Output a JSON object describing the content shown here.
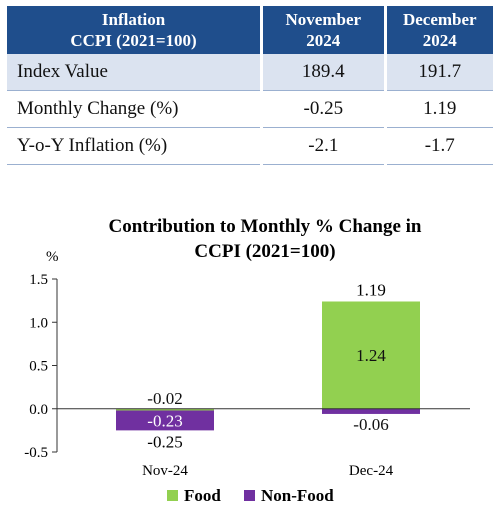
{
  "table": {
    "header": {
      "col1_line1": "Inflation",
      "col1_line2": "CCPI (2021=100)",
      "col2_line1": "November",
      "col2_line2": "2024",
      "col3_line1": "December",
      "col3_line2": "2024"
    },
    "rows": [
      {
        "label": "Index Value",
        "nov": "189.4",
        "dec": "191.7"
      },
      {
        "label": "Monthly Change (%)",
        "nov": "-0.25",
        "dec": "1.19"
      },
      {
        "label": "Y-o-Y Inflation (%)",
        "nov": "-2.1",
        "dec": "-1.7"
      }
    ],
    "header_color": "#1f4e8c"
  },
  "chart_data": {
    "type": "bar",
    "stacked": true,
    "title_line1": "Contribution to Monthly % Change in",
    "title_line2": "CCPI (2021=100)",
    "ylabel": "%",
    "ylim": [
      -0.5,
      1.5
    ],
    "yticks": [
      "1.5",
      "1.0",
      "0.5",
      "0.0",
      "-0.5"
    ],
    "ytick_values": [
      1.5,
      1.0,
      0.5,
      0.0,
      -0.5
    ],
    "categories": [
      "Nov-24",
      "Dec-24"
    ],
    "series": [
      {
        "name": "Food",
        "values": [
          -0.02,
          1.24
        ],
        "labels": [
          "-0.02",
          "1.24"
        ],
        "color": "#92d050"
      },
      {
        "name": "Non-Food",
        "values": [
          -0.23,
          -0.06
        ],
        "labels": [
          "-0.23",
          "-0.06"
        ],
        "color": "#7030a0"
      }
    ],
    "totals": [
      -0.25,
      1.19
    ],
    "total_labels": [
      "-0.25",
      "1.19"
    ],
    "legend_position": "bottom"
  }
}
